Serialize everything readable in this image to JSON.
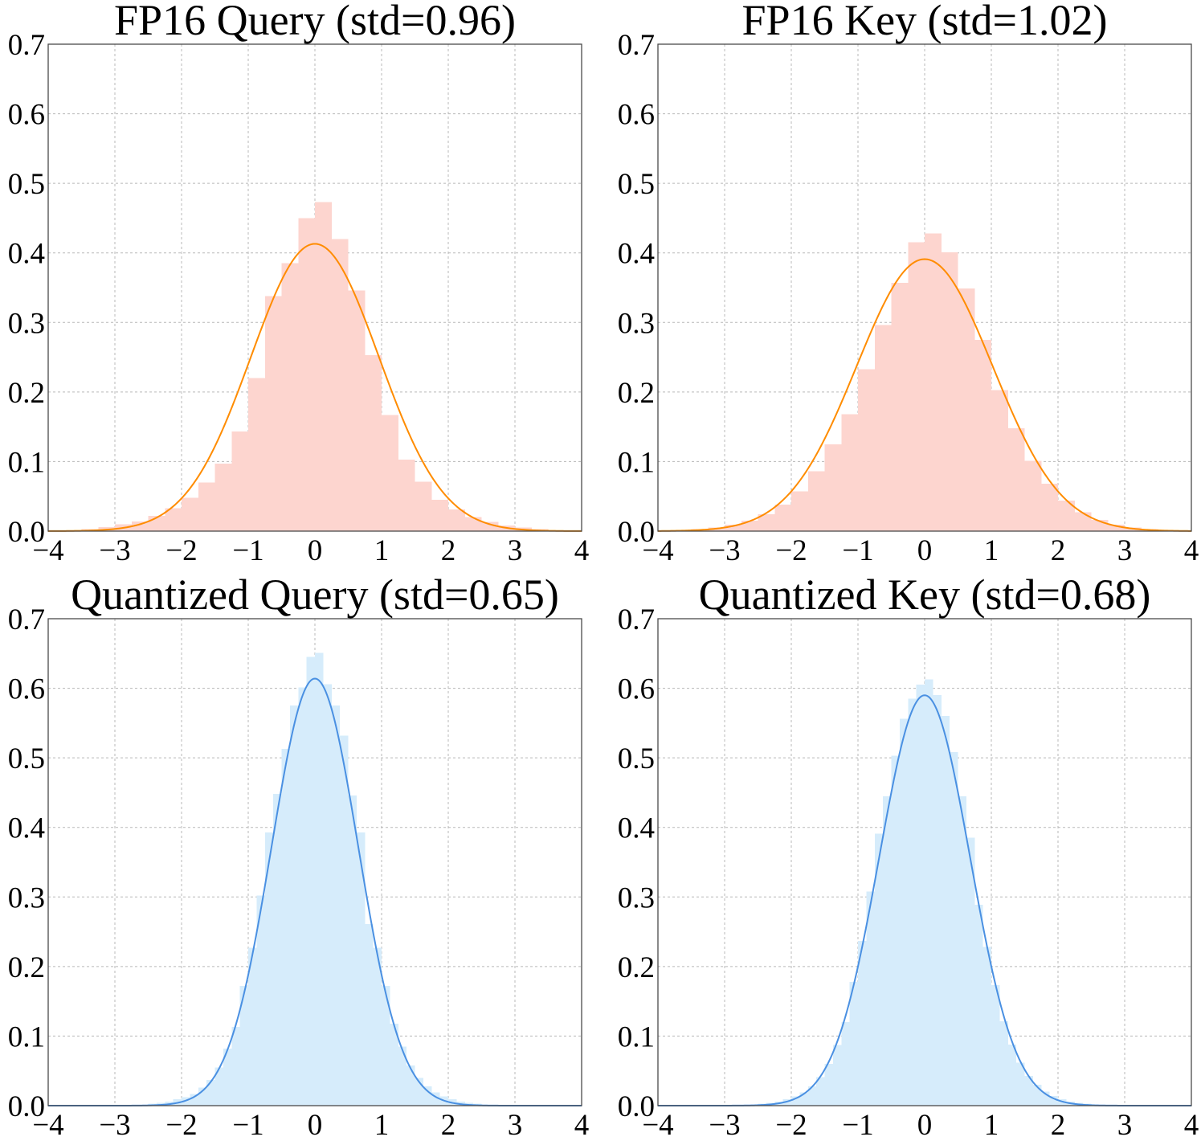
{
  "colors": {
    "fp16_bar": "#fdd5cf",
    "fp16_curve": "#ff8c00",
    "quant_bar": "#d6ecfb",
    "quant_curve": "#4a90e2",
    "grid": "#b8b8b8",
    "axis": "#4a4a4a"
  },
  "chart_data": [
    {
      "type": "bar",
      "title": "FP16 Query (std=0.96)",
      "xlim": [
        -4,
        4
      ],
      "ylim": [
        0,
        0.7
      ],
      "xticks": [
        "−4",
        "−3",
        "−2",
        "−1",
        "0",
        "1",
        "2",
        "3",
        "4"
      ],
      "yticks": [
        "0.0",
        "0.1",
        "0.2",
        "0.3",
        "0.4",
        "0.5",
        "0.6",
        "0.7"
      ],
      "grid": true,
      "color_scheme": "fp16",
      "histogram": {
        "bin_edges": [
          -3.5,
          -3.25,
          -3.0,
          -2.75,
          -2.5,
          -2.25,
          -2.0,
          -1.75,
          -1.5,
          -1.25,
          -1.0,
          -0.75,
          -0.5,
          -0.25,
          0.0,
          0.25,
          0.5,
          0.75,
          1.0,
          1.25,
          1.5,
          1.75,
          2.0,
          2.25,
          2.5,
          2.75,
          3.0,
          3.25,
          3.5
        ],
        "density": [
          0.003,
          0.006,
          0.01,
          0.014,
          0.022,
          0.033,
          0.048,
          0.07,
          0.097,
          0.143,
          0.22,
          0.338,
          0.385,
          0.45,
          0.473,
          0.42,
          0.346,
          0.253,
          0.167,
          0.103,
          0.071,
          0.045,
          0.031,
          0.02,
          0.013,
          0.008,
          0.005,
          0.003
        ]
      },
      "fit_curve": {
        "mean": 0.0,
        "peak": 0.413
      }
    },
    {
      "type": "bar",
      "title": "FP16 Key (std=1.02)",
      "xlim": [
        -4,
        4
      ],
      "ylim": [
        0,
        0.7
      ],
      "xticks": [
        "−4",
        "−3",
        "−2",
        "−1",
        "0",
        "1",
        "2",
        "3",
        "4"
      ],
      "yticks": [
        "0.0",
        "0.1",
        "0.2",
        "0.3",
        "0.4",
        "0.5",
        "0.6",
        "0.7"
      ],
      "grid": true,
      "color_scheme": "fp16",
      "histogram": {
        "bin_edges": [
          -3.5,
          -3.25,
          -3.0,
          -2.75,
          -2.5,
          -2.25,
          -2.0,
          -1.75,
          -1.5,
          -1.25,
          -1.0,
          -0.75,
          -0.5,
          -0.25,
          0.0,
          0.25,
          0.5,
          0.75,
          1.0,
          1.25,
          1.5,
          1.75,
          2.0,
          2.25,
          2.5,
          2.75,
          3.0,
          3.25,
          3.5
        ],
        "density": [
          0.003,
          0.005,
          0.009,
          0.015,
          0.024,
          0.038,
          0.057,
          0.086,
          0.125,
          0.168,
          0.233,
          0.296,
          0.357,
          0.415,
          0.428,
          0.401,
          0.349,
          0.275,
          0.203,
          0.148,
          0.101,
          0.068,
          0.044,
          0.027,
          0.016,
          0.009,
          0.005,
          0.003
        ]
      },
      "fit_curve": {
        "mean": 0.0,
        "peak": 0.391
      }
    },
    {
      "type": "bar",
      "title": "Quantized Query (std=0.65)",
      "xlim": [
        -4,
        4
      ],
      "ylim": [
        0,
        0.7
      ],
      "xticks": [
        "−4",
        "−3",
        "−2",
        "−1",
        "0",
        "1",
        "2",
        "3",
        "4"
      ],
      "yticks": [
        "0.0",
        "0.1",
        "0.2",
        "0.3",
        "0.4",
        "0.5",
        "0.6",
        "0.7"
      ],
      "grid": true,
      "color_scheme": "quant",
      "histogram": {
        "bin_edges": [
          -2.5,
          -2.375,
          -2.25,
          -2.125,
          -2.0,
          -1.875,
          -1.75,
          -1.625,
          -1.5,
          -1.375,
          -1.25,
          -1.125,
          -1.0,
          -0.875,
          -0.75,
          -0.625,
          -0.5,
          -0.375,
          -0.25,
          -0.125,
          0.0,
          0.125,
          0.25,
          0.375,
          0.5,
          0.625,
          0.75,
          0.875,
          1.0,
          1.125,
          1.25,
          1.375,
          1.5,
          1.625,
          1.75,
          1.875,
          2.0,
          2.125,
          2.25,
          2.375,
          2.5
        ],
        "density": [
          0.003,
          0.004,
          0.006,
          0.009,
          0.012,
          0.017,
          0.026,
          0.037,
          0.055,
          0.082,
          0.113,
          0.172,
          0.227,
          0.302,
          0.393,
          0.448,
          0.513,
          0.575,
          0.601,
          0.645,
          0.651,
          0.606,
          0.575,
          0.532,
          0.446,
          0.393,
          0.261,
          0.227,
          0.172,
          0.118,
          0.085,
          0.058,
          0.04,
          0.028,
          0.019,
          0.013,
          0.009,
          0.006,
          0.004,
          0.003
        ]
      },
      "fit_curve": {
        "mean": 0.0,
        "peak": 0.614
      }
    },
    {
      "type": "bar",
      "title": "Quantized Key (std=0.68)",
      "xlim": [
        -4,
        4
      ],
      "ylim": [
        0,
        0.7
      ],
      "xticks": [
        "−4",
        "−3",
        "−2",
        "−1",
        "0",
        "1",
        "2",
        "3",
        "4"
      ],
      "yticks": [
        "0.0",
        "0.1",
        "0.2",
        "0.3",
        "0.4",
        "0.5",
        "0.6",
        "0.7"
      ],
      "grid": true,
      "color_scheme": "quant",
      "histogram": {
        "bin_edges": [
          -2.5,
          -2.375,
          -2.25,
          -2.125,
          -2.0,
          -1.875,
          -1.75,
          -1.625,
          -1.5,
          -1.375,
          -1.25,
          -1.125,
          -1.0,
          -0.875,
          -0.75,
          -0.625,
          -0.5,
          -0.375,
          -0.25,
          -0.125,
          0.0,
          0.125,
          0.25,
          0.375,
          0.5,
          0.625,
          0.75,
          0.875,
          1.0,
          1.125,
          1.25,
          1.375,
          1.5,
          1.625,
          1.75,
          1.875,
          2.0,
          2.125,
          2.25,
          2.375,
          2.5
        ],
        "density": [
          0.003,
          0.004,
          0.006,
          0.009,
          0.013,
          0.019,
          0.028,
          0.041,
          0.06,
          0.087,
          0.12,
          0.178,
          0.237,
          0.308,
          0.391,
          0.445,
          0.503,
          0.556,
          0.585,
          0.605,
          0.613,
          0.59,
          0.56,
          0.508,
          0.445,
          0.385,
          0.289,
          0.228,
          0.173,
          0.121,
          0.088,
          0.062,
          0.043,
          0.03,
          0.02,
          0.014,
          0.009,
          0.006,
          0.004,
          0.003
        ]
      },
      "fit_curve": {
        "mean": 0.0,
        "peak": 0.59
      }
    }
  ]
}
